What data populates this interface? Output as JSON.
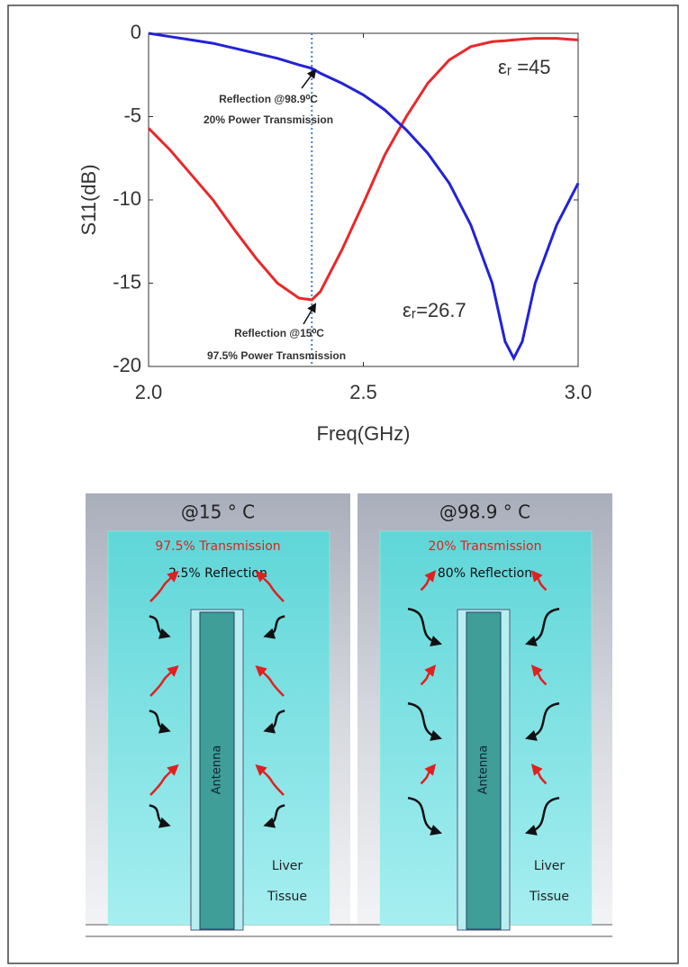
{
  "chart_data": {
    "type": "line",
    "xlabel": "Freq(GHz)",
    "ylabel": "S11(dB)",
    "x": [
      2.0,
      2.05,
      2.1,
      2.15,
      2.2,
      2.25,
      2.3,
      2.35,
      2.38,
      2.4,
      2.45,
      2.5,
      2.55,
      2.6,
      2.65,
      2.7,
      2.75,
      2.8,
      2.83,
      2.85,
      2.87,
      2.9,
      2.95,
      3.0
    ],
    "series": [
      {
        "name": "εᵣ =45",
        "color": "#e8282a",
        "values": [
          -5.7,
          -7,
          -8.5,
          -10,
          -11.8,
          -13.5,
          -15,
          -15.9,
          -16,
          -15.5,
          -13,
          -10.2,
          -7.3,
          -5,
          -3,
          -1.6,
          -0.8,
          -0.5,
          -0.45,
          -0.4,
          -0.35,
          -0.3,
          -0.3,
          -0.4
        ]
      },
      {
        "name": "εᵣ=26.7",
        "color": "#2222d8",
        "values": [
          0,
          -0.2,
          -0.4,
          -0.6,
          -0.9,
          -1.2,
          -1.5,
          -1.9,
          -2.1,
          -2.4,
          -3,
          -3.7,
          -4.6,
          -5.8,
          -7.2,
          -9,
          -11.5,
          -15,
          -18.5,
          -19.5,
          -18.5,
          -15,
          -11.5,
          -9
        ]
      }
    ],
    "xlim": [
      2.0,
      3.0
    ],
    "ylim": [
      -20,
      0
    ],
    "xticks": [
      {
        "value": 2.0,
        "label": "2.0"
      },
      {
        "value": 2.5,
        "label": "2.5"
      },
      {
        "value": 3.0,
        "label": "3.0"
      }
    ],
    "yticks": [
      0,
      -5,
      -10,
      -15,
      -20
    ],
    "marker_x": 2.38,
    "annotations": [
      "Reflection @98.9⁰C",
      "20% Power Transmission",
      "Reflection @15⁰C",
      "97.5% Power Transmission"
    ]
  },
  "diagram": {
    "panels": [
      {
        "title": "@15 ° C",
        "transmission": "97.5% Transmission",
        "reflection": "2.5% Reflection",
        "antenna": "Antenna",
        "tissue": [
          "Liver",
          "Tissue"
        ]
      },
      {
        "title": "@98.9 ° C",
        "transmission": "20% Transmission",
        "reflection": "80% Reflection",
        "antenna": "Antenna",
        "tissue": [
          "Liver",
          "Tissue"
        ]
      }
    ]
  }
}
